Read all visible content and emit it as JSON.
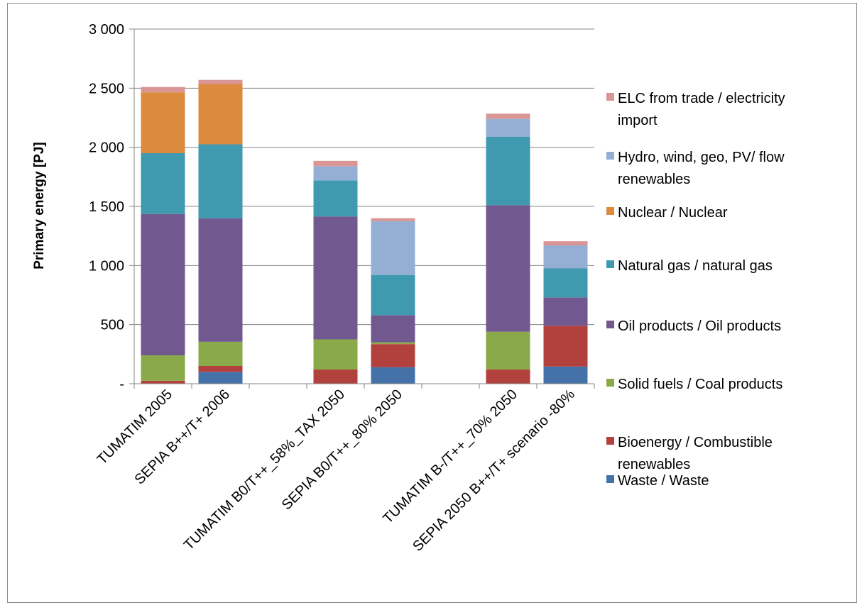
{
  "chart_data": {
    "type": "bar",
    "stacked": true,
    "title": "",
    "xlabel": "",
    "ylabel": "Primary energy [PJ]",
    "ylim": [
      0,
      3000
    ],
    "yticks": [
      {
        "value": 0,
        "label": "-"
      },
      {
        "value": 500,
        "label": "500"
      },
      {
        "value": 1000,
        "label": "1 000"
      },
      {
        "value": 1500,
        "label": "1 500"
      },
      {
        "value": 2000,
        "label": "2 000"
      },
      {
        "value": 2500,
        "label": "2 500"
      },
      {
        "value": 3000,
        "label": "3 000"
      }
    ],
    "grid": true,
    "legend_position": "right",
    "categories": [
      "TUMATIM 2005",
      "SEPIA B++/T+ 2006",
      "",
      "TUMATIM B0/T++_58%_TAX 2050",
      "SEPIA B0/T++_80% 2050",
      "",
      "TUMATIM B-/T++_70% 2050",
      "SEPIA 2050 B++/T+ scenario -80%"
    ],
    "series": [
      {
        "name": "Waste / Waste",
        "color": "#4472A8",
        "values": [
          0,
          100,
          0,
          0,
          140,
          0,
          0,
          145
        ]
      },
      {
        "name": "Bioenergy / Combustible renewables",
        "color": "#B2413E",
        "values": [
          25,
          50,
          0,
          120,
          195,
          0,
          120,
          345
        ]
      },
      {
        "name": "Solid fuels / Coal products",
        "color": "#8AAA4A",
        "values": [
          215,
          205,
          0,
          255,
          15,
          0,
          320,
          0
        ]
      },
      {
        "name": "Oil products / Oil products",
        "color": "#71588F",
        "values": [
          1195,
          1045,
          0,
          1040,
          230,
          0,
          1070,
          240
        ]
      },
      {
        "name": "Natural gas / natural gas",
        "color": "#3F9AAF",
        "values": [
          515,
          625,
          0,
          305,
          340,
          0,
          580,
          245
        ]
      },
      {
        "name": "Nuclear / Nuclear",
        "color": "#DB8A3E",
        "values": [
          515,
          510,
          0,
          0,
          0,
          0,
          0,
          0
        ]
      },
      {
        "name": "Hydro, wind, geo, PV/ flow renewables",
        "color": "#95AFD4",
        "values": [
          0,
          0,
          0,
          120,
          455,
          0,
          150,
          195
        ]
      },
      {
        "name": "ELC from trade / electricity import",
        "color": "#D99694",
        "values": [
          45,
          35,
          0,
          45,
          25,
          0,
          45,
          35
        ]
      }
    ],
    "legend": [
      {
        "text": [
          "ELC from trade / electricity",
          "import"
        ],
        "color": "#D99694"
      },
      {
        "text": [
          "Hydro, wind, geo, PV/ flow",
          "renewables"
        ],
        "color": "#95AFD4"
      },
      {
        "text": [
          "Nuclear / Nuclear"
        ],
        "color": "#DB8A3E"
      },
      {
        "text": [
          "Natural gas / natural gas"
        ],
        "color": "#3F9AAF"
      },
      {
        "text": [
          "Oil products / Oil products"
        ],
        "color": "#71588F"
      },
      {
        "text": [
          "Solid fuels / Coal products"
        ],
        "color": "#8AAA4A"
      },
      {
        "text": [
          "Bioenergy / Combustible",
          "renewables"
        ],
        "color": "#B2413E"
      },
      {
        "text": [
          "Waste / Waste"
        ],
        "color": "#4472A8"
      }
    ]
  }
}
